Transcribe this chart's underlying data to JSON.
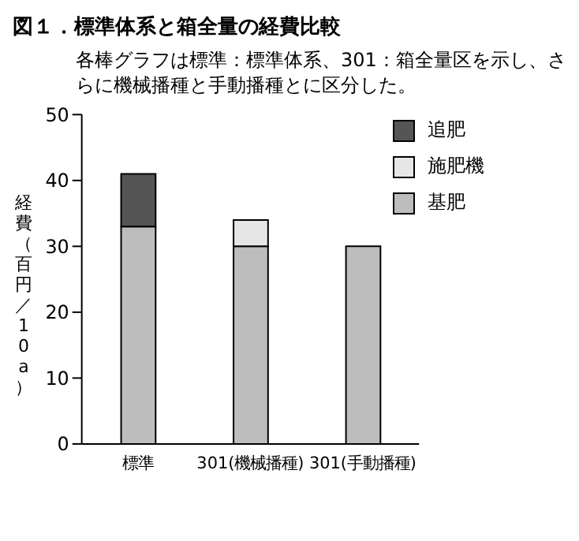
{
  "chart_data": {
    "type": "bar",
    "title": "図１．標準体系と箱全量の経費比較",
    "subtitle": "各棒グラフは標準：標準体系、301：箱全量区を示し、さらに機械播種と手動播種とに区分した。",
    "ylabel": "経費（百円／10a）",
    "categories": [
      "標準",
      "301(機械播種)",
      "301(手動播種)"
    ],
    "stacked": true,
    "series": [
      {
        "name": "基肥",
        "color": "#bdbdbd",
        "values": [
          33,
          30,
          30
        ]
      },
      {
        "name": "施肥機",
        "color": "#e6e6e6",
        "values": [
          0,
          4,
          0
        ]
      },
      {
        "name": "追肥",
        "color": "#555555",
        "values": [
          8,
          0,
          0
        ]
      }
    ],
    "ylim": [
      0,
      50
    ],
    "yticks": [
      0,
      10,
      20,
      30,
      40,
      50
    ],
    "grid": false,
    "legend": "top right"
  }
}
